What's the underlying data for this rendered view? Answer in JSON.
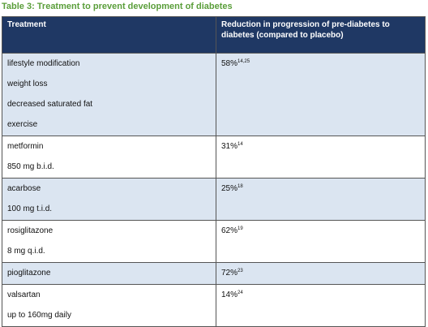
{
  "title": "Table 3: Treatment to prevent development of diabetes",
  "table": {
    "header": [
      "Treatment",
      "Reduction in progression of pre-diabetes to diabetes (compared to placebo)"
    ],
    "rows": [
      {
        "treatment": [
          "lifestyle modification",
          "weight loss",
          "decreased saturated fat",
          "exercise"
        ],
        "reduction": "58%",
        "refs": "14,25"
      },
      {
        "treatment": [
          "metformin",
          "850 mg b.i.d."
        ],
        "reduction": "31%",
        "refs": "14"
      },
      {
        "treatment": [
          "acarbose",
          "100 mg t.i.d."
        ],
        "reduction": "25%",
        "refs": "18"
      },
      {
        "treatment": [
          "rosiglitazone",
          "8 mg q.i.d."
        ],
        "reduction": "62%",
        "refs": "19"
      },
      {
        "treatment": [
          "pioglitazone"
        ],
        "reduction": "72%",
        "refs": "23"
      },
      {
        "treatment": [
          "valsartan",
          "up to 160mg daily"
        ],
        "reduction": "14%",
        "refs": "24"
      }
    ]
  }
}
